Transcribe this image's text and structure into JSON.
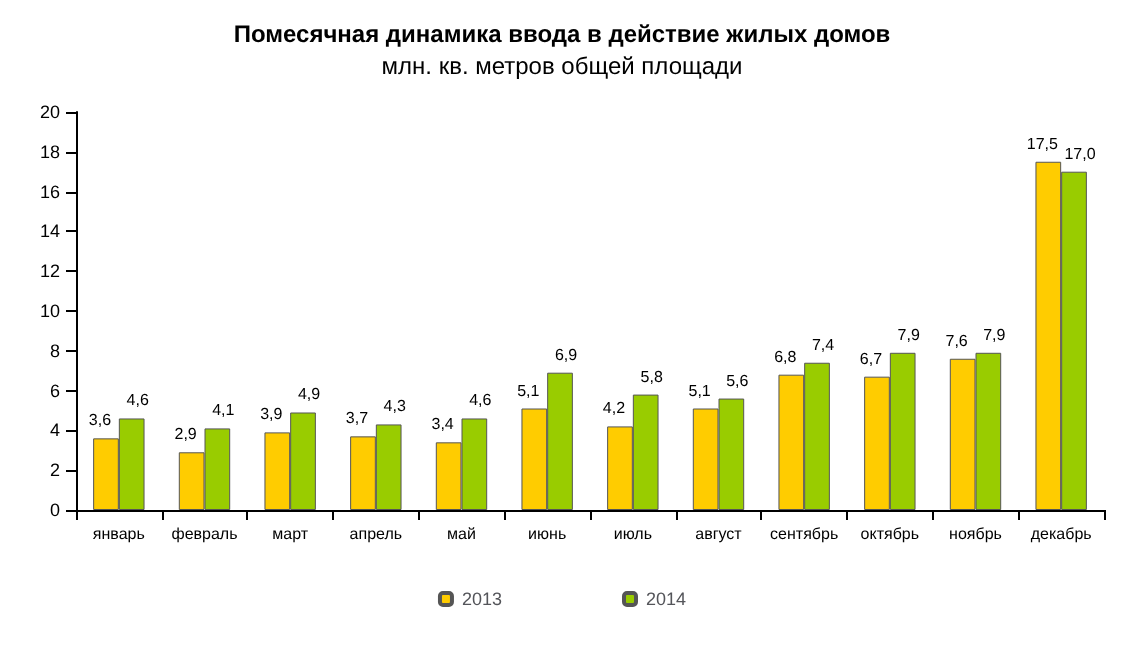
{
  "chart_data": {
    "type": "bar",
    "title": "Помесячная динамика ввода в действие жилых домов",
    "subtitle": "млн. кв. метров общей площади",
    "categories": [
      "январь",
      "февраль",
      "март",
      "апрель",
      "май",
      "июнь",
      "июль",
      "август",
      "сентябрь",
      "октябрь",
      "ноябрь",
      "декабрь"
    ],
    "series": [
      {
        "name": "2013",
        "color": "#ffcc00",
        "values": [
          3.6,
          2.9,
          3.9,
          3.7,
          3.4,
          5.1,
          4.2,
          5.1,
          6.8,
          6.7,
          7.6,
          17.5
        ],
        "value_labels": [
          "3,6",
          "2,9",
          "3,9",
          "3,7",
          "3,4",
          "5,1",
          "4,2",
          "5,1",
          "6,8",
          "6,7",
          "7,6",
          "17,5"
        ]
      },
      {
        "name": "2014",
        "color": "#99cc00",
        "values": [
          4.6,
          4.1,
          4.9,
          4.3,
          4.6,
          6.9,
          5.8,
          5.6,
          7.4,
          7.9,
          7.9,
          17.0
        ],
        "value_labels": [
          "4,6",
          "4,1",
          "4,9",
          "4,3",
          "4,6",
          "6,9",
          "5,8",
          "5,6",
          "7,4",
          "7,9",
          "7,9",
          "17,0"
        ]
      }
    ],
    "ylim": [
      0,
      20
    ],
    "yticks": [
      0,
      2,
      4,
      6,
      8,
      10,
      12,
      14,
      16,
      18,
      20
    ],
    "grid": false,
    "legend": "bottom"
  }
}
